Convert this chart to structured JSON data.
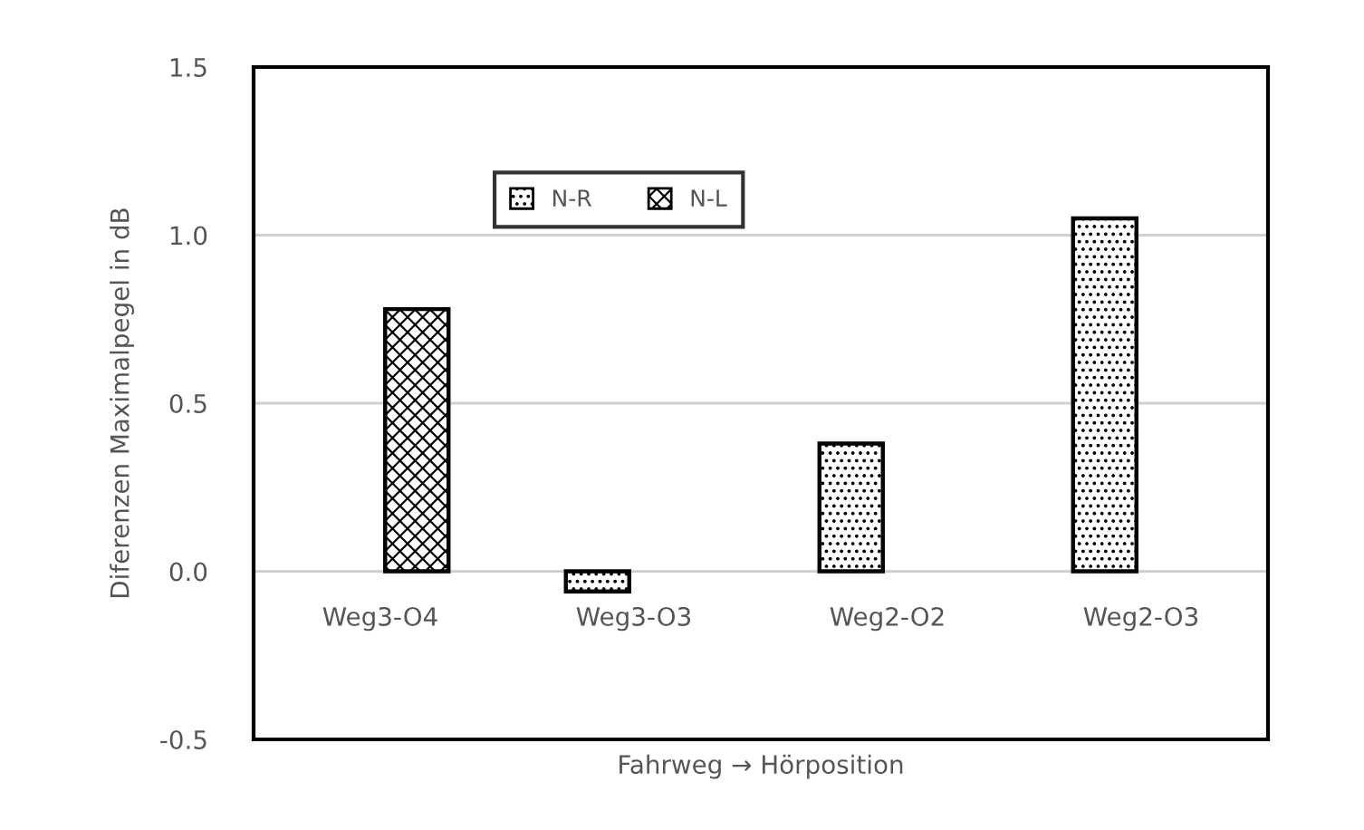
{
  "chart_data": {
    "type": "bar",
    "xlabel": "Fahrweg → Hörposition",
    "ylabel": "Diferenzen Maximalpegel in dB",
    "categories": [
      "Weg3-O4",
      "Weg3-O3",
      "Weg2-O2",
      "Weg2-O3"
    ],
    "series": [
      {
        "name": "N-R",
        "color": "#000000",
        "values": [
          null,
          -0.06,
          0.38,
          1.05
        ]
      },
      {
        "name": "N-L",
        "color": "#000000",
        "values": [
          0.78,
          null,
          null,
          null
        ]
      }
    ],
    "ylim": [
      -0.5,
      1.5
    ],
    "yticks": [
      {
        "value": -0.5,
        "label": "-0.5"
      },
      {
        "value": 0,
        "label": "0.0"
      },
      {
        "value": 0.5,
        "label": "0.5"
      },
      {
        "value": 1,
        "label": "1.0"
      },
      {
        "value": 1.5,
        "label": "1.5"
      }
    ],
    "grid": "y",
    "legend": "top"
  }
}
